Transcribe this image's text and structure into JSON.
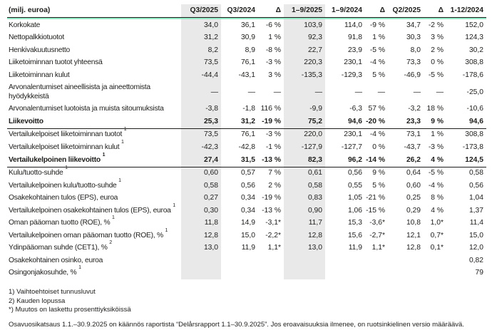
{
  "table": {
    "unit_label": "(milj. euroa)",
    "columns": [
      "Q3/2025",
      "Q3/2024",
      "Δ",
      "1–9/2025",
      "1–9/2024",
      "Δ",
      "Q2/2025",
      "Δ",
      "1-12/2024"
    ],
    "shaded_columns": [
      "Q3/2025",
      "1–9/2025"
    ],
    "rows": [
      {
        "label": "Korkokate",
        "values": [
          "34,0",
          "36,1",
          "-6 %",
          "103,9",
          "114,0",
          "-9 %",
          "34,7",
          "-2 %",
          "152,0"
        ]
      },
      {
        "label": "Nettopalkkiotuotot",
        "values": [
          "31,2",
          "30,9",
          "1 %",
          "92,3",
          "91,8",
          "1 %",
          "30,3",
          "3 %",
          "124,3"
        ]
      },
      {
        "label": "Henkivakuutusnetto",
        "values": [
          "8,2",
          "8,9",
          "-8 %",
          "22,7",
          "23,9",
          "-5 %",
          "8,0",
          "2 %",
          "30,2"
        ]
      },
      {
        "label": "Liiketoiminnan tuotot yhteensä",
        "values": [
          "73,5",
          "76,1",
          "-3 %",
          "220,3",
          "230,1",
          "-4 %",
          "73,3",
          "0 %",
          "308,8"
        ]
      },
      {
        "label": "Liiketoiminnan kulut",
        "values": [
          "-44,4",
          "-43,1",
          "3 %",
          "-135,3",
          "-129,3",
          "5 %",
          "-46,9",
          "-5 %",
          "-178,6"
        ]
      },
      {
        "label": "Arvonalentumiset aineellisista ja aineettomista hyödykkeistä",
        "wrap": true,
        "values": [
          "—",
          "—",
          "—",
          "—",
          "—",
          "—",
          "—",
          "—",
          "-25,0"
        ]
      },
      {
        "label": "Arvonalentumiset luotoista ja muista sitoumuksista",
        "values": [
          "-3,8",
          "-1,8",
          "116 %",
          "-9,9",
          "-6,3",
          "57 %",
          "-3,2",
          "18 %",
          "-10,6"
        ]
      },
      {
        "label": "Liikevoitto",
        "bold": true,
        "rule_below": true,
        "values": [
          "25,3",
          "31,2",
          "-19 %",
          "75,2",
          "94,6",
          "-20 %",
          "23,3",
          "9 %",
          "94,6"
        ]
      },
      {
        "label": "Vertailukelpoiset liiketoiminnan tuotot",
        "sup": "1",
        "values": [
          "73,5",
          "76,1",
          "-3 %",
          "220,0",
          "230,1",
          "-4 %",
          "73,1",
          "1 %",
          "308,8"
        ]
      },
      {
        "label": "Vertailukelpoiset liiketoiminnan kulut",
        "sup": "1",
        "values": [
          "-42,3",
          "-42,8",
          "-1 %",
          "-127,9",
          "-127,7",
          "0 %",
          "-43,7",
          "-3 %",
          "-173,8"
        ]
      },
      {
        "label": "Vertailukelpoinen liikevoitto",
        "sup": "1",
        "bold": true,
        "rule_below": true,
        "values": [
          "27,4",
          "31,5",
          "-13 %",
          "82,3",
          "96,2",
          "-14 %",
          "26,2",
          "4 %",
          "124,5"
        ]
      },
      {
        "label": "Kulu/tuotto-suhde",
        "sup": "1",
        "values": [
          "0,60",
          "0,57",
          "7 %",
          "0,61",
          "0,56",
          "9 %",
          "0,64",
          "-5 %",
          "0,58"
        ]
      },
      {
        "label": "Vertailukelpoinen kulu/tuotto-suhde",
        "sup": "1",
        "values": [
          "0,58",
          "0,56",
          "2 %",
          "0,58",
          "0,55",
          "5 %",
          "0,60",
          "-4 %",
          "0,56"
        ]
      },
      {
        "label": "Osakekohtainen tulos (EPS), euroa",
        "values": [
          "0,27",
          "0,34",
          "-19 %",
          "0,83",
          "1,05",
          "-21 %",
          "0,25",
          "8 %",
          "1,04"
        ]
      },
      {
        "label": "Vertailukelpoinen osakekohtainen tulos (EPS), euroa",
        "sup": "1",
        "wrap": true,
        "values": [
          "0,30",
          "0,34",
          "-13 %",
          "0,90",
          "1,06",
          "-15 %",
          "0,29",
          "4 %",
          "1,37"
        ]
      },
      {
        "label": "Oman pääoman tuotto (ROE), %",
        "sup": "1",
        "values": [
          "11,8",
          "14,9",
          "-3,1*",
          "11,7",
          "15,3",
          "-3,6*",
          "10,8",
          "1,0*",
          "11,4"
        ]
      },
      {
        "label": "Vertailukelpoinen oman pääoman tuotto (ROE), %",
        "sup": "1",
        "values": [
          "12,8",
          "15,0",
          "-2,2*",
          "12,8",
          "15,6",
          "-2,7*",
          "12,1",
          "0,7*",
          "15,0"
        ]
      },
      {
        "label": "Ydinpääoman suhde (CET1), %",
        "sup": "2",
        "values": [
          "13,0",
          "11,9",
          "1,1*",
          "13,0",
          "11,9",
          "1,1*",
          "12,8",
          "0,1*",
          "12,0"
        ]
      },
      {
        "label": "Osakekohtainen osinko, euroa",
        "values": [
          "",
          "",
          "",
          "",
          "",
          "",
          "",
          "",
          "0,82"
        ]
      },
      {
        "label": "Osingonjakosuhde, %",
        "sup": "1",
        "values": [
          "",
          "",
          "",
          "",
          "",
          "",
          "",
          "",
          "79"
        ]
      }
    ]
  },
  "footnotes": [
    "1) Vaihtoehtoiset tunnusluvut",
    "2) Kauden lopussa",
    "*) Muutos on laskettu prosenttiyksiköissä"
  ],
  "disclaimer": "Osavuosikatsaus 1.1.–30.9.2025 on käännös raportista “Delårsrapport 1.1–30.9.2025”. Jos eroavaisuuksia ilmenee, on ruotsinkielinen versio määräävä.",
  "colors": {
    "text": "#1d1d1b",
    "shaded_column_bg": "#e9e9e9",
    "header_rule_dark": "#1d1d1b",
    "header_rule_accent": "#93ebc8"
  }
}
